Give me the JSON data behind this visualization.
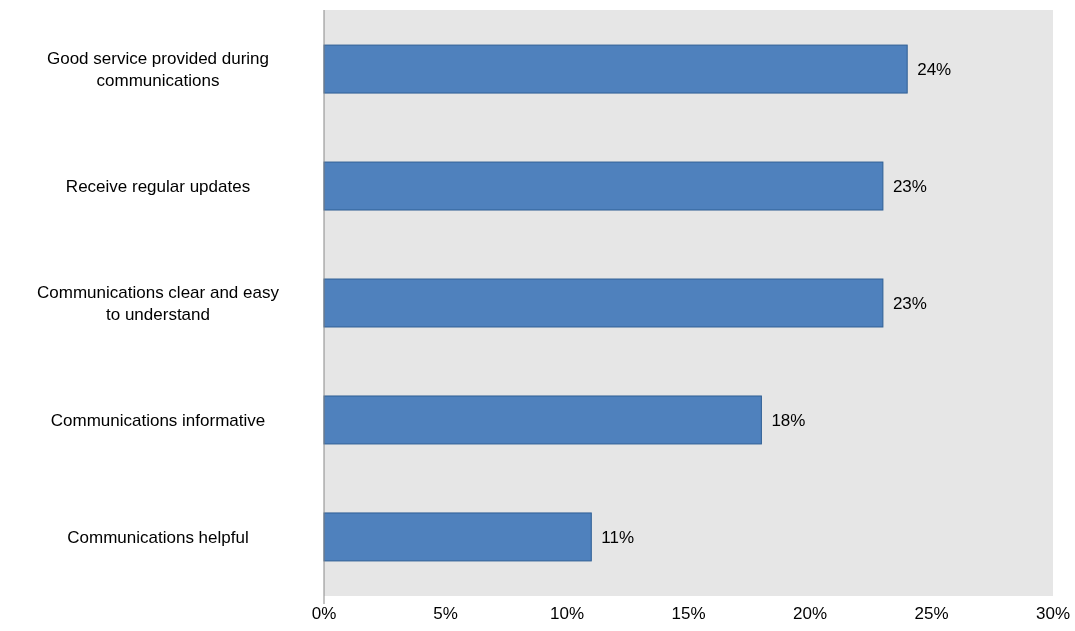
{
  "chart_data": {
    "type": "bar",
    "orientation": "horizontal",
    "categories": [
      "Good service provided during communications",
      "Receive regular updates",
      "Communications clear and easy to understand",
      "Communications informative",
      "Communications helpful"
    ],
    "values": [
      24,
      23,
      23,
      18,
      11
    ],
    "value_labels": [
      "24%",
      "23%",
      "23%",
      "18%",
      "11%"
    ],
    "color": "#4f81bd",
    "xlim": [
      0,
      30
    ],
    "xticks": [
      {
        "value": 0,
        "label": "0%"
      },
      {
        "value": 5,
        "label": "5%"
      },
      {
        "value": 10,
        "label": "10%"
      },
      {
        "value": 15,
        "label": "15%"
      },
      {
        "value": 20,
        "label": "20%"
      },
      {
        "value": 25,
        "label": "25%"
      },
      {
        "value": 30,
        "label": "30%"
      }
    ],
    "grid": false
  }
}
